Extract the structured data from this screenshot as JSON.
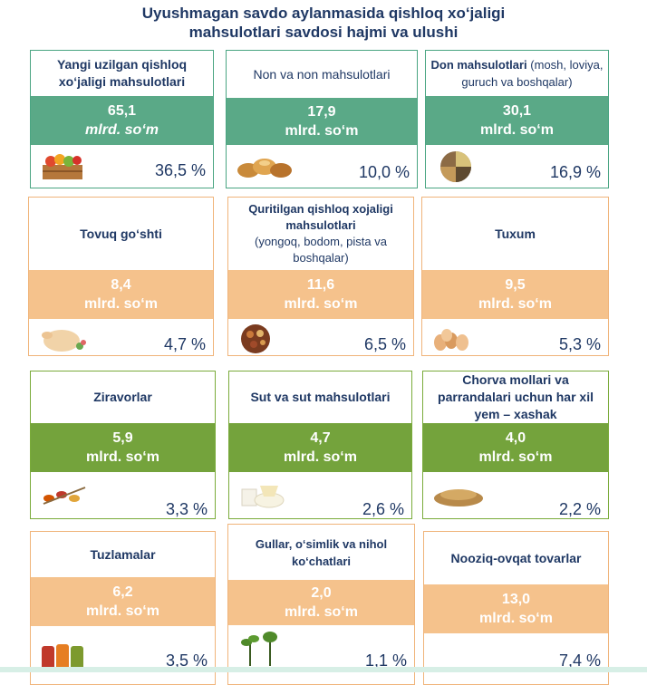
{
  "title": {
    "line1": "Uyushmagan savdo aylanmasida qishloq xo‘jaligi",
    "line2": "mahsulotlari savdosi hajmi va ulushi"
  },
  "cards": [
    {
      "name": "Yangi uzilgan qishloq xo‘jaligi mahsulotlari",
      "note": "",
      "value": "65,1",
      "unit": "mlrd. so‘m",
      "share": "36,5 %",
      "icon": "fruit-vegetable-crate-icon"
    },
    {
      "name": "Non va non mahsulotlari",
      "note": "",
      "value": "17,9",
      "unit": "mlrd. so‘m",
      "share": "10,0 %",
      "icon": "bread-icon"
    },
    {
      "name": "Don mahsulotlari",
      "note": "(mosh, loviya, guruch va boshqalar)",
      "value": "30,1",
      "unit": "mlrd. so‘m",
      "share": "16,9 %",
      "icon": "grains-icon"
    },
    {
      "name": "Tovuq go‘shti",
      "note": "",
      "value": "8,4",
      "unit": "mlrd. so‘m",
      "share": "4,7 %",
      "icon": "chicken-icon"
    },
    {
      "name": "Quritilgan qishloq xojaligi mahsulotlari",
      "note": "(yongoq, bodom, pista va boshqalar)",
      "value": "11,6",
      "unit": "mlrd. so‘m",
      "share": "6,5 %",
      "icon": "dried-fruits-icon"
    },
    {
      "name": "Tuxum",
      "note": "",
      "value": "9,5",
      "unit": "mlrd. so‘m",
      "share": "5,3 %",
      "icon": "eggs-icon"
    },
    {
      "name": "Ziravorlar",
      "note": "",
      "value": "5,9",
      "unit": "mlrd. so‘m",
      "share": "3,3 %",
      "icon": "spices-icon"
    },
    {
      "name": "Sut va sut mahsulotlari",
      "note": "",
      "value": "4,7",
      "unit": "mlrd. so‘m",
      "share": "2,6 %",
      "icon": "dairy-icon"
    },
    {
      "name": "Chorva mollari va parrandalari uchun har xil yem – xashak",
      "note": "",
      "value": "4,0",
      "unit": "mlrd. so‘m",
      "share": "2,2 %",
      "icon": "feed-icon"
    },
    {
      "name": "Tuzlamalar",
      "note": "",
      "value": "6,2",
      "unit": "mlrd. so‘m",
      "share": "3,5 %",
      "icon": "pickles-icon"
    },
    {
      "name": "Gullar, o‘simlik va nihol ko‘chatlari",
      "note": "",
      "value": "2,0",
      "unit": "mlrd. so‘m",
      "share": "1,1 %",
      "icon": "seedlings-icon"
    },
    {
      "name": "Nooziq-ovqat tovarlar",
      "note": "",
      "value": "13,0",
      "unit": "mlrd. so‘m",
      "share": "7,4 %",
      "icon": ""
    }
  ],
  "colors": {
    "green": "#5aa987",
    "orange": "#f5c28c",
    "olive": "#74a33c",
    "text": "#1f3864"
  }
}
